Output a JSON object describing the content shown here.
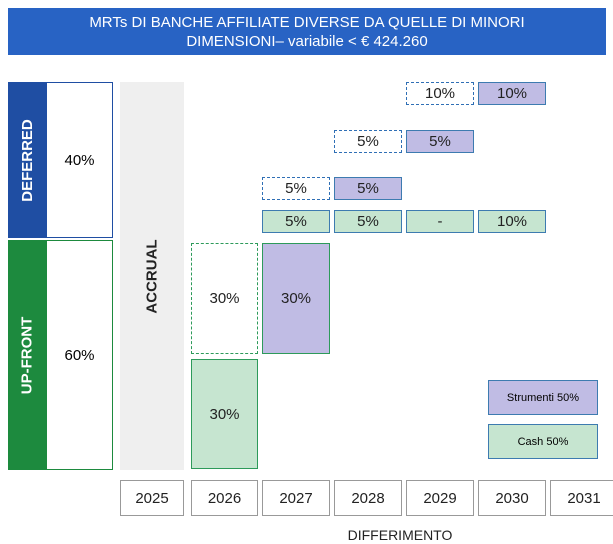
{
  "header": {
    "title_lines": [
      "MRTs DI BANCHE AFFILIATE DIVERSE DA QUELLE DI MINORI",
      "DIMENSIONI– variabile < € 424.260"
    ]
  },
  "sections": [
    {
      "label": "DEFERRED",
      "share": "40%"
    },
    {
      "label": "UP-FRONT",
      "share": "60%"
    }
  ],
  "accrual": "ACCRUAL",
  "years": [
    "2025",
    "2026",
    "2027",
    "2028",
    "2029",
    "2030",
    "2031"
  ],
  "axis_label": "DIFFERIMENTO",
  "boxes": [
    {
      "year": "2026",
      "kind": "dashed-green",
      "label": "30%"
    },
    {
      "year": "2026",
      "kind": "cash",
      "label": "30%"
    },
    {
      "year": "2027",
      "kind": "strumenti",
      "label": "30%"
    },
    {
      "year": "2027",
      "kind": "cash",
      "label": "5%"
    },
    {
      "year": "2028",
      "kind": "cash",
      "label": "5%"
    },
    {
      "year": "2029",
      "kind": "cash",
      "label": "-"
    },
    {
      "year": "2030",
      "kind": "cash",
      "label": "10%"
    },
    {
      "year": "2027",
      "kind": "dashed",
      "label": "5%"
    },
    {
      "year": "2028",
      "kind": "strumenti",
      "label": "5%"
    },
    {
      "year": "2028",
      "kind": "dashed",
      "label": "5%"
    },
    {
      "year": "2029",
      "kind": "strumenti",
      "label": "5%"
    },
    {
      "year": "2029",
      "kind": "dashed",
      "label": "10%"
    },
    {
      "year": "2030",
      "kind": "strumenti",
      "label": "10%"
    }
  ],
  "legend": [
    "Strumenti 50%",
    "Cash 50%"
  ]
}
